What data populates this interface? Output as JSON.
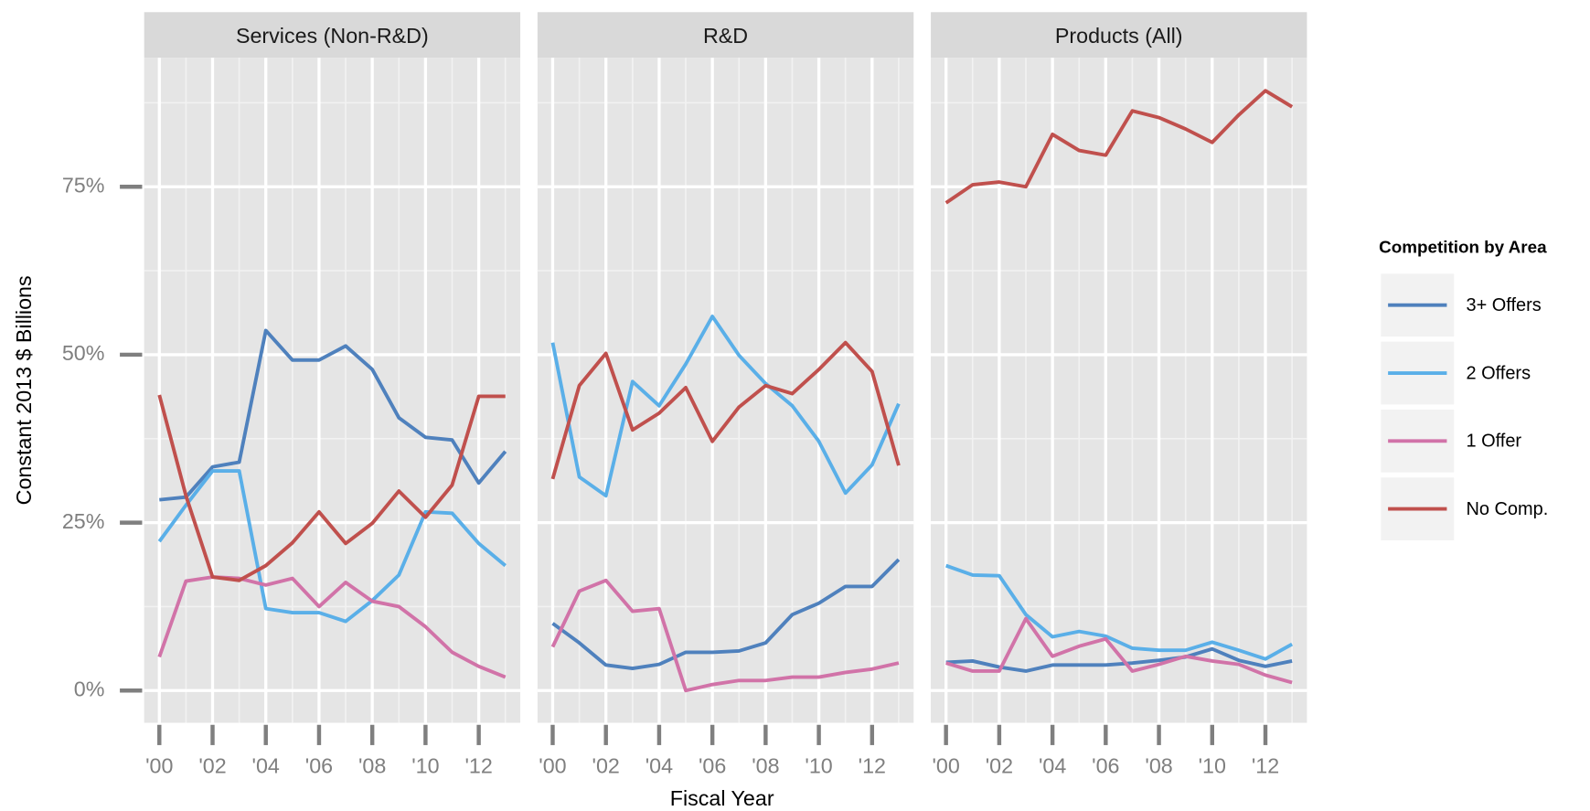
{
  "chart_data": {
    "type": "line",
    "xlabel": "Fiscal Year",
    "ylabel": "Constant 2013 $ Billions",
    "legend_title": "Competition by Area",
    "legend_position": "right",
    "grid": true,
    "x": [
      2000,
      2001,
      2002,
      2003,
      2004,
      2005,
      2006,
      2007,
      2008,
      2009,
      2010,
      2011,
      2012,
      2013
    ],
    "xlim": [
      1999.43,
      2013.56
    ],
    "xticks": [
      {
        "value": 2000,
        "label": "'00"
      },
      {
        "value": 2002,
        "label": "'02"
      },
      {
        "value": 2004,
        "label": "'04"
      },
      {
        "value": 2006,
        "label": "'06"
      },
      {
        "value": 2008,
        "label": "'08"
      },
      {
        "value": 2010,
        "label": "'10"
      },
      {
        "value": 2012,
        "label": "'12"
      }
    ],
    "minor_xticks": [
      2001,
      2003,
      2005,
      2007,
      2009,
      2011,
      2013
    ],
    "ylim": [
      -4.8,
      94.2
    ],
    "yticks": [
      {
        "value": 0,
        "label": "0%"
      },
      {
        "value": 25,
        "label": "25%"
      },
      {
        "value": 50,
        "label": "50%"
      },
      {
        "value": 75,
        "label": "75%"
      }
    ],
    "minor_yticks": [
      12.5,
      37.5,
      62.5,
      87.5
    ],
    "series": [
      {
        "name": "3+ Offers",
        "color": "#4f81bd"
      },
      {
        "name": "2 Offers",
        "color": "#5aafe8"
      },
      {
        "name": "1 Offer",
        "color": "#d173a8"
      },
      {
        "name": "No Comp.",
        "color": "#c0504d"
      }
    ],
    "panels": [
      {
        "title": "Services (Non-R&D)",
        "values": [
          [
            28.4,
            28.8,
            33.3,
            34,
            53.6,
            49.2,
            49.2,
            51.3,
            47.8,
            40.6,
            37.7,
            37.3,
            30.9,
            35.6
          ],
          [
            22.2,
            27.6,
            32.7,
            32.7,
            12.2,
            11.6,
            11.6,
            10.3,
            13.4,
            17.2,
            26.6,
            26.4,
            21.9,
            18.6
          ],
          [
            5,
            16.3,
            16.9,
            16.7,
            15.7,
            16.7,
            12.5,
            16.1,
            13.3,
            12.5,
            9.5,
            5.7,
            3.6,
            2
          ],
          [
            44,
            29,
            16.9,
            16.4,
            18.6,
            22,
            26.6,
            21.9,
            24.9,
            29.7,
            25.8,
            30.6,
            43.8,
            43.8
          ]
        ]
      },
      {
        "title": "R&D",
        "values": [
          [
            10,
            7.1,
            3.8,
            3.3,
            3.9,
            5.7,
            5.7,
            5.9,
            7.1,
            11.3,
            13,
            15.5,
            15.5,
            19.5
          ],
          [
            51.8,
            31.8,
            29,
            46,
            42.4,
            48.6,
            55.7,
            49.9,
            45.7,
            42.4,
            37.1,
            29.4,
            33.6,
            42.7
          ],
          [
            6.5,
            14.8,
            16.4,
            11.8,
            12.2,
            0,
            0.9,
            1.5,
            1.5,
            2,
            2,
            2.7,
            3.2,
            4.1
          ],
          [
            31.5,
            45.4,
            50.2,
            38.8,
            41.3,
            45.1,
            37.1,
            42.2,
            45.4,
            44.2,
            47.8,
            51.8,
            47.5,
            33.5
          ]
        ]
      },
      {
        "title": "Products (All)",
        "values": [
          [
            4.2,
            4.4,
            3.5,
            2.9,
            3.8,
            3.8,
            3.8,
            4.1,
            4.5,
            5,
            6.2,
            4.5,
            3.6,
            4.4
          ],
          [
            18.6,
            17.2,
            17.1,
            11.3,
            8,
            8.8,
            8.1,
            6.3,
            6,
            6,
            7.2,
            6,
            4.7,
            6.9
          ],
          [
            4.1,
            2.9,
            2.9,
            10.7,
            5.1,
            6.6,
            7.7,
            2.9,
            3.9,
            5.1,
            4.4,
            3.9,
            2.3,
            1.2
          ],
          [
            72.6,
            75.3,
            75.7,
            75,
            82.8,
            80.4,
            79.7,
            86.3,
            85.3,
            83.6,
            81.6,
            85.7,
            89.3,
            86.9
          ]
        ]
      }
    ]
  }
}
